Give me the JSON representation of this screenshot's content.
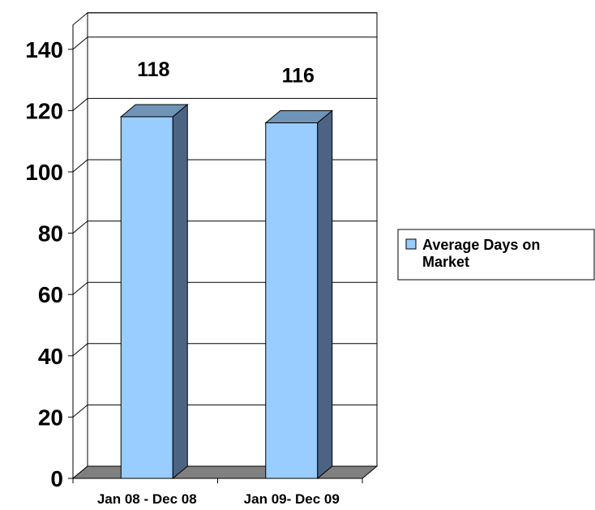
{
  "chart_data": {
    "type": "bar",
    "categories": [
      "Jan 08 - Dec 08",
      "Jan 09- Dec 09"
    ],
    "series": [
      {
        "name": "Average Days on Market",
        "values": [
          118,
          116
        ]
      }
    ],
    "data_labels": [
      "118",
      "116"
    ],
    "ylim": [
      0,
      140
    ],
    "yticks": [
      "0",
      "20",
      "40",
      "60",
      "80",
      "100",
      "120",
      "140"
    ],
    "grid": true,
    "legend": {
      "position": "right",
      "lines": [
        "Average Days on",
        "Market"
      ]
    },
    "colors": {
      "bar_front": "#99CCFF",
      "bar_top": "#6F94B8",
      "bar_side": "#4D6382",
      "floor": "#808080",
      "legend_swatch": "#99CCFF"
    }
  }
}
